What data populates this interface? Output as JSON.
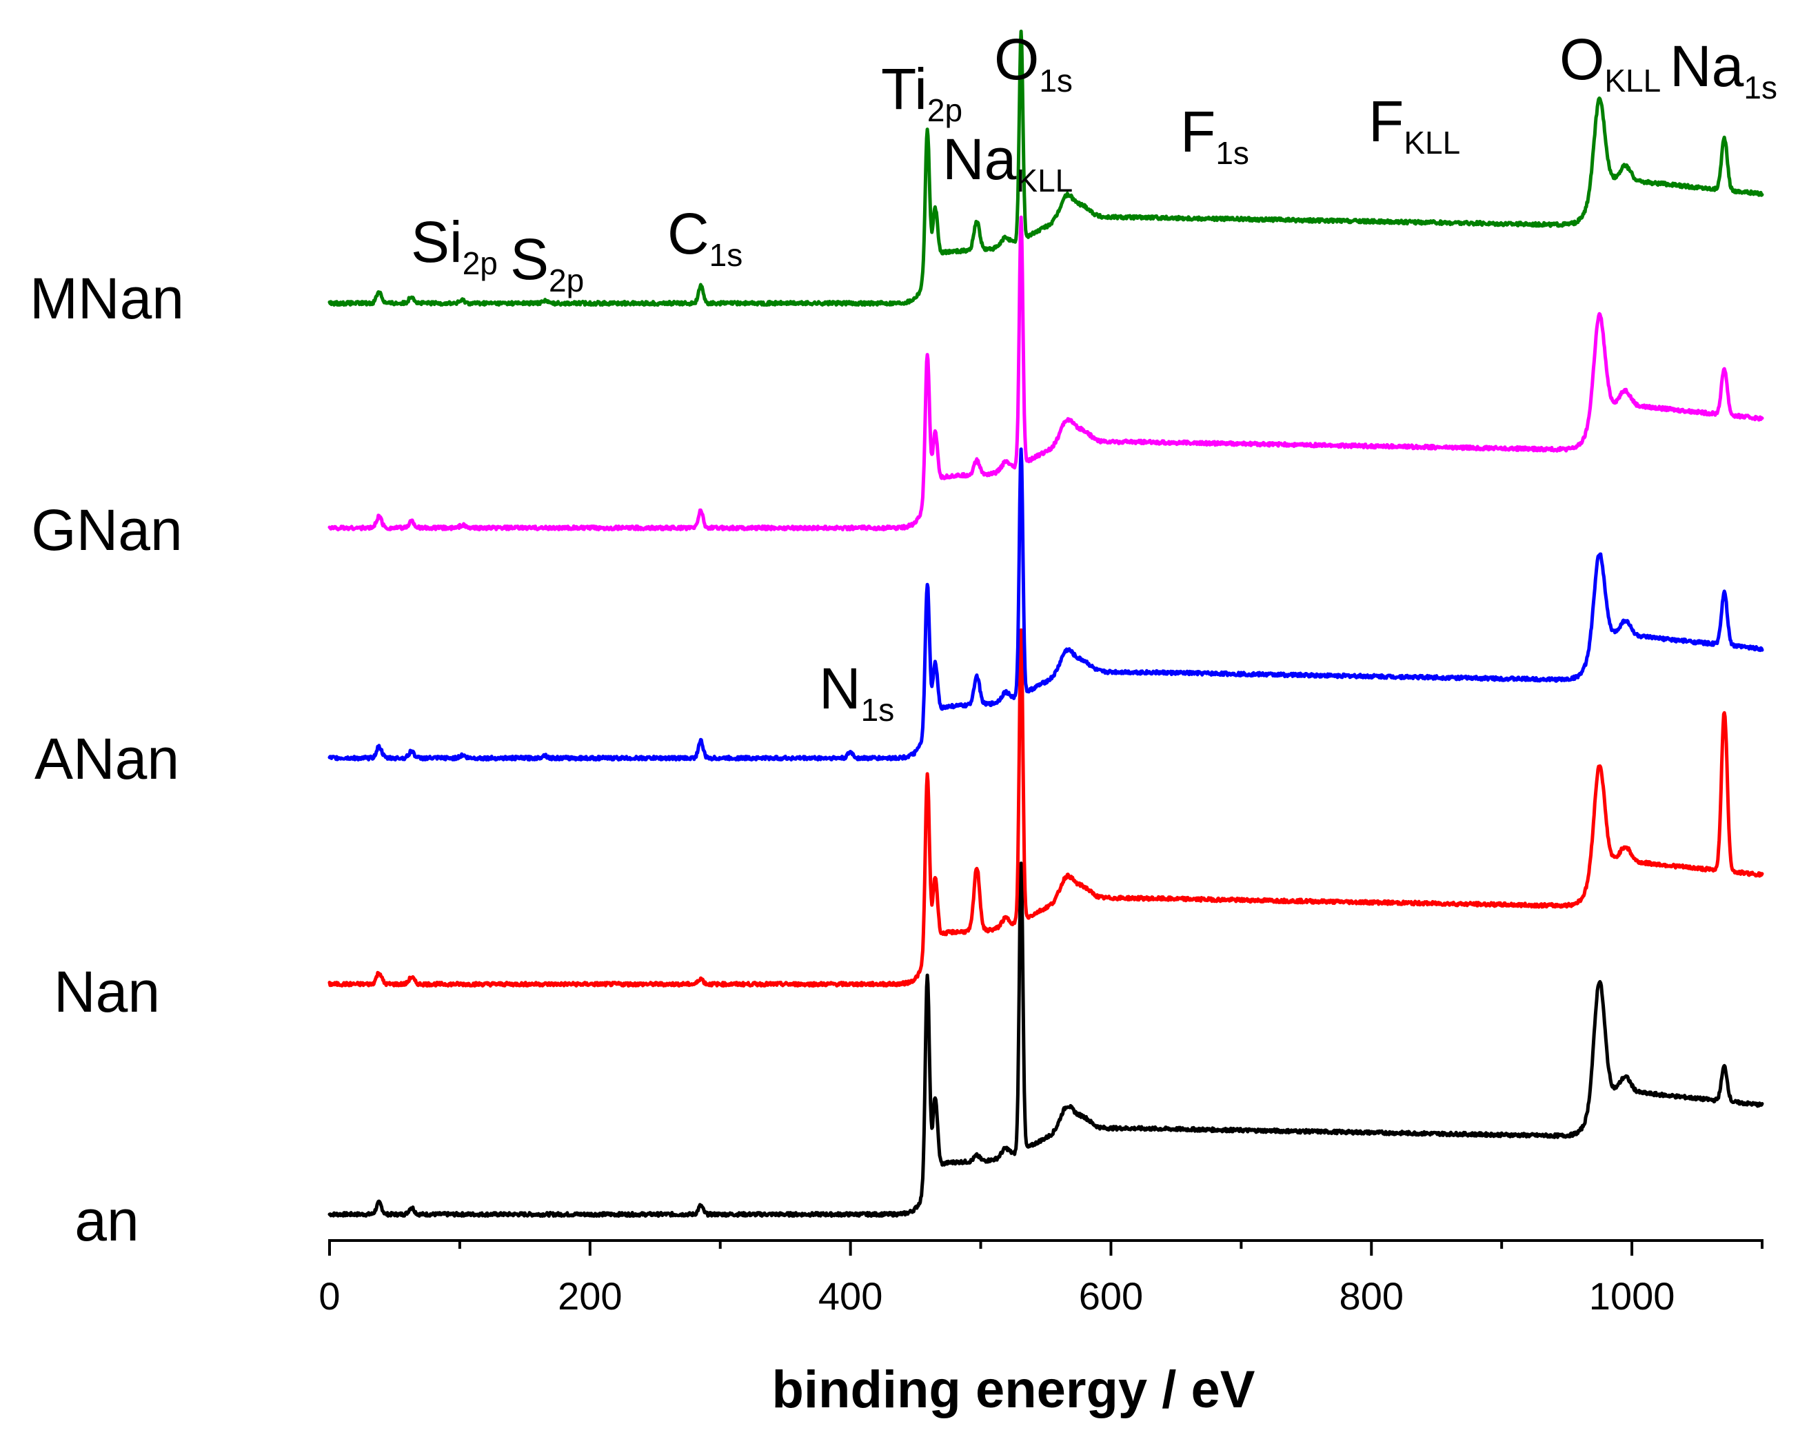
{
  "chart_data": {
    "type": "line",
    "title": "",
    "xlabel": "binding energy / eV",
    "ylabel": "",
    "xlim": [
      0,
      1100
    ],
    "x_ticks": [
      0,
      200,
      400,
      600,
      800,
      1000
    ],
    "x_tick_labels": [
      "0",
      "200",
      "400",
      "600",
      "800",
      "1000"
    ],
    "x_minor_step": 100,
    "y_ticks_shown": false,
    "note": "XPS survey spectra, offset vertically (stacked), arbitrary intensity units",
    "series": [
      {
        "name": "an",
        "color": "#000000",
        "offset": 0,
        "scale": 1.0,
        "features": {
          "o1s": 1.0,
          "ti2p": 0.72,
          "okll": 0.4,
          "na1s": 0.12,
          "nakll": 0.02,
          "c1s": 0.03,
          "n1s": 0.0,
          "si2p": 0.0,
          "s2p": 0.0,
          "low": 0.04
        }
      },
      {
        "name": "Nan",
        "color": "#ff0000",
        "offset": 1,
        "scale": 1.0,
        "features": {
          "o1s": 1.0,
          "ti2p": 0.62,
          "okll": 0.35,
          "na1s": 0.55,
          "nakll": 0.22,
          "c1s": 0.02,
          "n1s": 0.0,
          "si2p": 0.0,
          "s2p": 0.0,
          "low": 0.04
        }
      },
      {
        "name": "ANan",
        "color": "#0000ff",
        "offset": 2,
        "scale": 1.0,
        "features": {
          "o1s": 0.85,
          "ti2p": 0.5,
          "okll": 0.3,
          "na1s": 0.18,
          "nakll": 0.1,
          "c1s": 0.06,
          "n1s": 0.02,
          "si2p": 0.01,
          "s2p": 0.01,
          "low": 0.04
        }
      },
      {
        "name": "GNan",
        "color": "#ff00ff",
        "offset": 3,
        "scale": 1.0,
        "features": {
          "o1s": 0.85,
          "ti2p": 0.5,
          "okll": 0.33,
          "na1s": 0.16,
          "nakll": 0.05,
          "c1s": 0.06,
          "n1s": 0.0,
          "si2p": 0.01,
          "s2p": 0.0,
          "low": 0.04
        }
      },
      {
        "name": "MNan",
        "color": "#008000",
        "offset": 4,
        "scale": 1.0,
        "features": {
          "o1s": 0.72,
          "ti2p": 0.5,
          "okll": 0.3,
          "na1s": 0.18,
          "nakll": 0.1,
          "c1s": 0.06,
          "n1s": 0.0,
          "si2p": 0.01,
          "s2p": 0.01,
          "low": 0.04
        }
      }
    ],
    "peak_annotations": [
      {
        "main": "Si",
        "sub": "2p",
        "energy": 100
      },
      {
        "main": "S",
        "sub": "2p",
        "energy": 165
      },
      {
        "main": "C",
        "sub": "1s",
        "energy": 285
      },
      {
        "main": "N",
        "sub": "1s",
        "energy": 400
      },
      {
        "main": "Ti",
        "sub": "2p",
        "energy": 459
      },
      {
        "main": "Na",
        "sub": "KLL",
        "energy": 497
      },
      {
        "main": "O",
        "sub": "1s",
        "energy": 531
      },
      {
        "main": "F",
        "sub": "1s",
        "energy": 685
      },
      {
        "main": "F",
        "sub": "KLL",
        "energy": 832
      },
      {
        "main": "O",
        "sub": "KLL",
        "energy": 975
      },
      {
        "main": "Na",
        "sub": "1s",
        "energy": 1071
      }
    ]
  }
}
